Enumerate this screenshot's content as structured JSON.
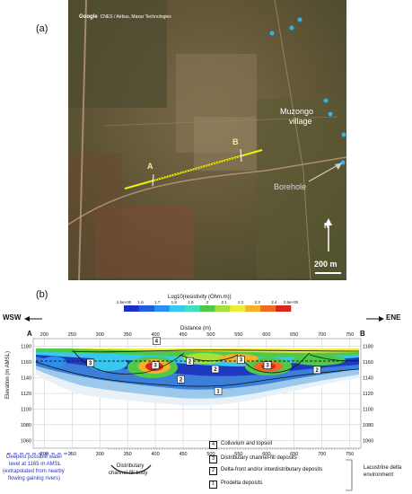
{
  "panel_a": {
    "label": "(a)",
    "attribution_brand": "Google",
    "attribution_text": "CNES / Airbus, Maxar Technologies",
    "village_label_1": "Muzongo",
    "village_label_2": "village",
    "borehole_label": "Borehole",
    "point_a": "A",
    "point_b": "B",
    "north_label": "N",
    "scale_label": "200 m"
  },
  "panel_b": {
    "label": "(b)",
    "direction_left": "WSW",
    "direction_right": "ENE",
    "colorbar_title": "Log10(resistivity (Ohm.m))",
    "colorbar_ticks": [
      "1.5e+00",
      "1.6",
      "1.7",
      "1.8",
      "1.9",
      "2",
      "2.1",
      "2.2",
      "2.3",
      "2.4",
      "2.5e+00"
    ],
    "colorbar_colors": [
      "#1a2fc8",
      "#1f5ee0",
      "#2a8ff0",
      "#37c8f0",
      "#3fe0c0",
      "#4ec94a",
      "#a6e03a",
      "#f0ea3a",
      "#f5b12a",
      "#ef6a22",
      "#d8281c"
    ],
    "distance_title": "Distance (m)",
    "distance_ticks": [
      "200",
      "250",
      "300",
      "350",
      "400",
      "450",
      "500",
      "550",
      "600",
      "650",
      "700",
      "750"
    ],
    "elevation_title": "Elevation (m AMSL)",
    "elevation_ticks": [
      "1180",
      "1160",
      "1140",
      "1120",
      "1100",
      "1080",
      "1060"
    ],
    "section_start": "A",
    "section_end": "B",
    "unit_markers": [
      {
        "num": "4",
        "d": 402,
        "z": 1187
      },
      {
        "num": "3",
        "d": 283,
        "z": 1159
      },
      {
        "num": "3",
        "d": 400,
        "z": 1156
      },
      {
        "num": "3",
        "d": 554,
        "z": 1163
      },
      {
        "num": "3",
        "d": 602,
        "z": 1156
      },
      {
        "num": "2",
        "d": 462,
        "z": 1161
      },
      {
        "num": "2",
        "d": 508,
        "z": 1151
      },
      {
        "num": "2",
        "d": 446,
        "z": 1138
      },
      {
        "num": "2",
        "d": 691,
        "z": 1150
      },
      {
        "num": "1",
        "d": 513,
        "z": 1123
      }
    ]
  },
  "legend": {
    "water_line_1": "Deepest possible water",
    "water_line_2": "level at 1165 m AMSL",
    "water_line_3": "(extrapolated from nearby",
    "water_line_4": "flowing gaining rivers)",
    "channel_label_1": "Distributary",
    "channel_label_2": "channel-fill body",
    "units": [
      {
        "num": "4",
        "text": "Colluvium and topsoil"
      },
      {
        "num": "3",
        "text": "Distributary channel-fill deposits"
      },
      {
        "num": "2",
        "text": "Delta-front and/or interdistributary deposits"
      },
      {
        "num": "1",
        "text": "Prodelta deposits"
      }
    ],
    "group_label_1": "Lacustrine delta",
    "group_label_2": "environment"
  }
}
